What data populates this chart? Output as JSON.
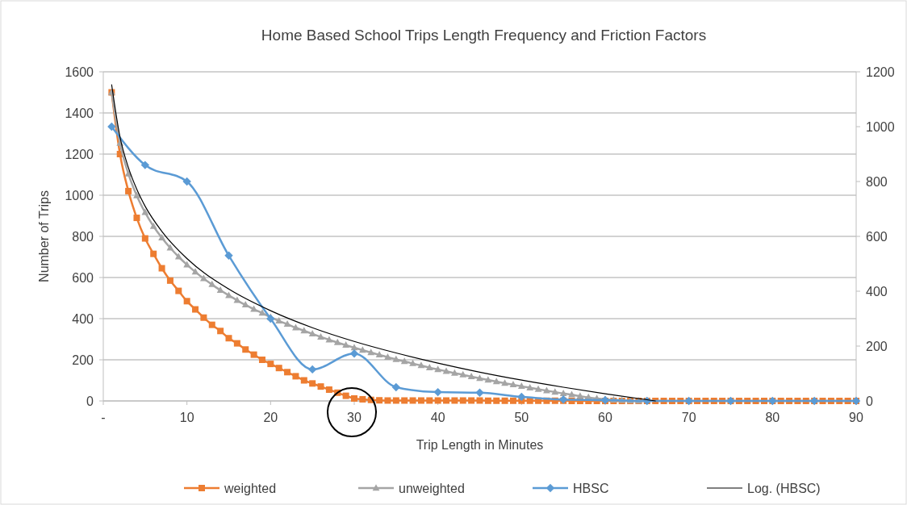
{
  "chart_data": {
    "type": "line",
    "title": "Home Based School Trips Length Frequency and Friction Factors",
    "xlabel": "Trip Length in Minutes",
    "ylabel": "Number of Trips",
    "xlim": [
      0,
      90
    ],
    "xticks": [
      {
        "value": 0,
        "label": "-"
      },
      10,
      20,
      30,
      40,
      50,
      60,
      70,
      80,
      90
    ],
    "ylim": [
      0,
      1600
    ],
    "yticks": [
      0,
      200,
      400,
      600,
      800,
      1000,
      1200,
      1400,
      1600
    ],
    "y2lim": [
      0,
      1200
    ],
    "y2ticks": [
      0,
      200,
      400,
      600,
      800,
      1000,
      1200
    ],
    "grid": "y",
    "legend": "bottom",
    "series": [
      {
        "name": "weighted",
        "color": "#ed7d31",
        "marker": "square",
        "x": [
          1,
          2,
          3,
          4,
          5,
          6,
          7,
          8,
          9,
          10,
          11,
          12,
          13,
          14,
          15,
          16,
          17,
          18,
          19,
          20,
          21,
          22,
          23,
          24,
          25,
          26,
          27,
          28,
          29,
          30,
          31,
          32,
          33,
          34,
          35,
          36,
          37,
          38,
          39,
          40,
          41,
          42,
          43,
          44,
          45,
          46,
          47,
          48,
          49,
          50,
          51,
          52,
          53,
          54,
          55,
          56,
          57,
          58,
          59,
          60,
          61,
          62,
          63,
          64,
          65,
          66,
          67,
          68,
          69,
          70,
          71,
          72,
          73,
          74,
          75,
          76,
          77,
          78,
          79,
          80,
          81,
          82,
          83,
          84,
          85,
          86,
          87,
          88,
          89,
          90
        ],
        "values": [
          1500,
          1200,
          1020,
          890,
          790,
          715,
          645,
          585,
          535,
          485,
          445,
          405,
          370,
          340,
          305,
          280,
          250,
          225,
          200,
          180,
          160,
          140,
          120,
          100,
          85,
          70,
          55,
          40,
          25,
          12,
          8,
          5,
          3,
          2,
          2,
          2,
          2,
          2,
          2,
          2,
          2,
          2,
          2,
          2,
          2,
          1,
          1,
          1,
          1,
          1,
          1,
          1,
          1,
          1,
          1,
          0,
          0,
          0,
          0,
          0,
          0,
          0,
          0,
          0,
          0,
          0,
          0,
          0,
          0,
          0,
          0,
          0,
          0,
          0,
          0,
          0,
          0,
          0,
          0,
          0,
          0,
          0,
          0,
          0,
          0,
          0,
          0,
          0,
          0,
          0
        ]
      },
      {
        "name": "unweighted",
        "color": "#a5a5a5",
        "marker": "triangle",
        "x": [
          1,
          2,
          3,
          4,
          5,
          6,
          7,
          8,
          9,
          10,
          11,
          12,
          13,
          14,
          15,
          16,
          17,
          18,
          19,
          20,
          21,
          22,
          23,
          24,
          25,
          26,
          27,
          28,
          29,
          30,
          31,
          32,
          33,
          34,
          35,
          36,
          37,
          38,
          39,
          40,
          41,
          42,
          43,
          44,
          45,
          46,
          47,
          48,
          49,
          50,
          51,
          52,
          53,
          54,
          55,
          56,
          57,
          58,
          59,
          60,
          61,
          62,
          63,
          64
        ],
        "values": [
          1500,
          1253,
          1104,
          998,
          916,
          849,
          793,
          744,
          701,
          662,
          627,
          595,
          566,
          538,
          513,
          489,
          467,
          446,
          427,
          407,
          389,
          373,
          356,
          341,
          326,
          311,
          297,
          284,
          271,
          259,
          247,
          235,
          224,
          213,
          202,
          192,
          182,
          172,
          162,
          153,
          144,
          135,
          127,
          118,
          110,
          102,
          94,
          86,
          79,
          71,
          64,
          57,
          50,
          43,
          36,
          30,
          23,
          17,
          12,
          8,
          5,
          3,
          1,
          0
        ]
      },
      {
        "name": "HBSC",
        "color": "#5b9bd5",
        "marker": "diamond",
        "axis": "y2",
        "x": [
          1,
          5,
          10,
          15,
          20,
          25,
          30,
          35,
          40,
          45,
          50,
          55,
          60,
          65,
          70,
          75,
          80,
          85,
          90
        ],
        "values": [
          1000,
          860,
          800,
          530,
          300,
          115,
          173,
          50,
          32,
          30,
          15,
          5,
          3,
          0,
          0,
          0,
          0,
          0,
          0
        ]
      },
      {
        "name": "Log. (HBSC)",
        "color": "#000000",
        "marker": "none",
        "axis": "y2",
        "x": [
          1,
          2,
          3,
          4,
          5,
          7,
          10,
          15,
          20,
          25,
          30,
          35,
          40,
          45,
          50,
          55,
          60,
          66
        ],
        "values": [
          1153,
          962,
          851,
          772,
          710,
          618,
          519,
          408,
          329,
          267,
          217,
          175,
          138,
          105,
          76,
          50,
          26,
          0
        ]
      }
    ]
  }
}
